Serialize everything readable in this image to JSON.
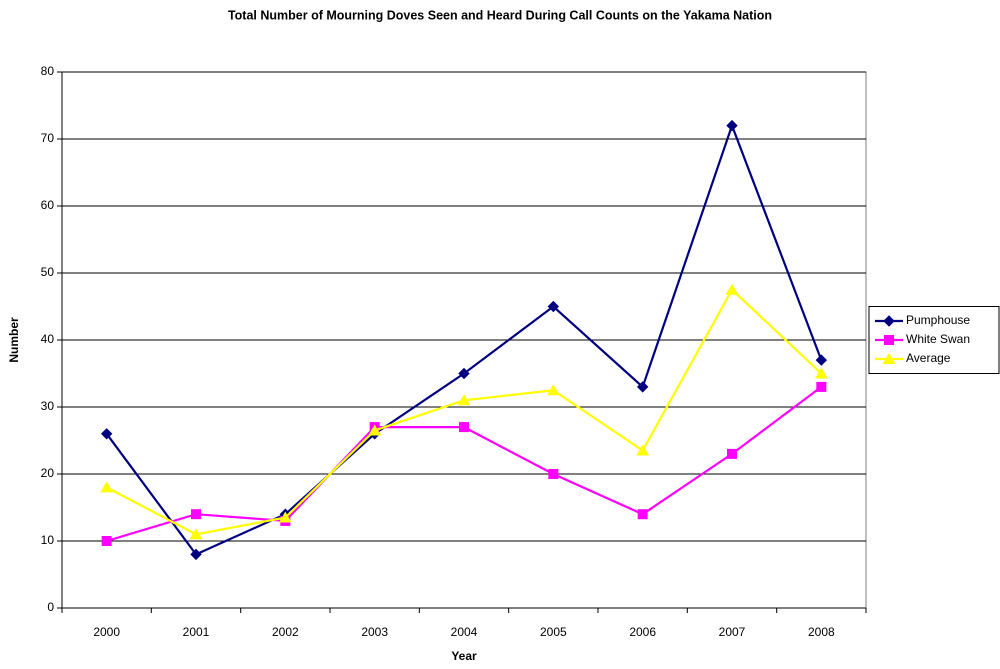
{
  "chart_data": {
    "type": "line",
    "title": "Total Number of Mourning Doves Seen and Heard During Call Counts on the Yakama Nation",
    "x_label": "Year",
    "y_label": "Number",
    "categories": [
      "2000",
      "2001",
      "2002",
      "2003",
      "2004",
      "2005",
      "2006",
      "2007",
      "2008"
    ],
    "series": [
      {
        "name": "Pumphouse",
        "color": "#000080",
        "marker": "diamond",
        "values": [
          26,
          8,
          14,
          26,
          35,
          45,
          33,
          72,
          37
        ]
      },
      {
        "name": "White Swan",
        "color": "#ff00ff",
        "marker": "square",
        "values": [
          10,
          14,
          13,
          27,
          27,
          20,
          14,
          23,
          33
        ]
      },
      {
        "name": "Average",
        "color": "#ffff00",
        "marker": "triangle",
        "values": [
          18,
          11,
          13.5,
          26.5,
          31,
          32.5,
          23.5,
          47.5,
          35
        ]
      }
    ],
    "ylim": [
      0,
      80
    ],
    "yticks": [
      0,
      10,
      20,
      30,
      40,
      50,
      60,
      70,
      80
    ],
    "grid": true,
    "legend": "right"
  }
}
